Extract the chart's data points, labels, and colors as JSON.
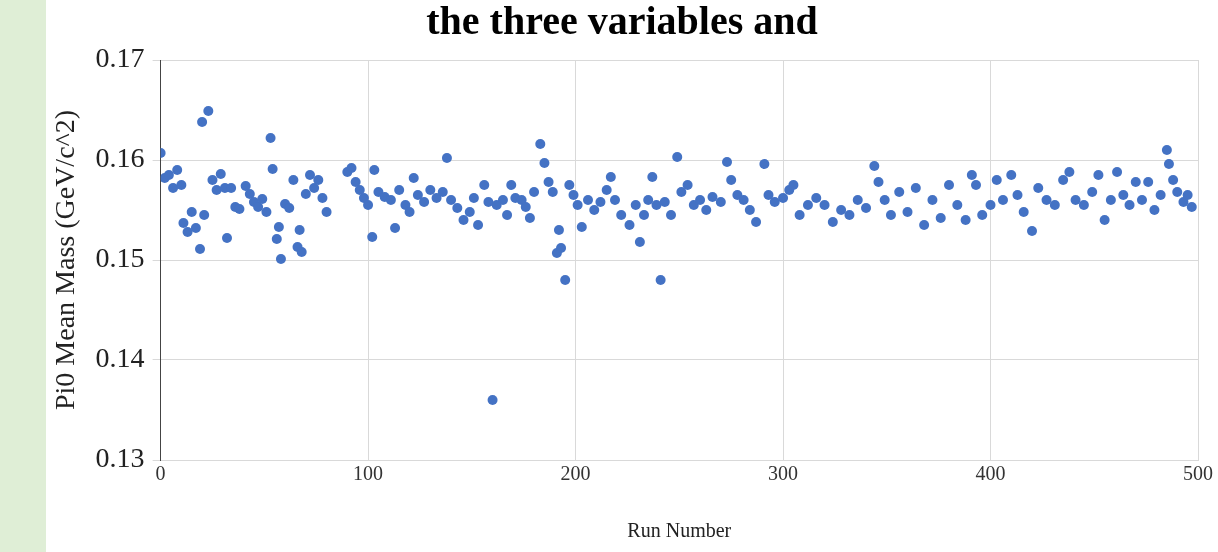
{
  "chart_data": {
    "type": "scatter",
    "title": "the three variables and",
    "xlabel": "Run Number",
    "ylabel": "Pi0 Mean Mass (GeV/c^2)",
    "xlim": [
      0,
      500
    ],
    "xticks": [
      0,
      100,
      200,
      300,
      400,
      500
    ],
    "ylim": [
      0.13,
      0.17
    ],
    "yticks": [
      0.13,
      0.14,
      0.15,
      0.16,
      0.17
    ],
    "grid": true,
    "marker": "circle",
    "legend": false,
    "series": [
      {
        "color": "#4472c4",
        "x": [
          0,
          2,
          4,
          6,
          8,
          10,
          11,
          13,
          15,
          17,
          19,
          20,
          21,
          23,
          25,
          27,
          29,
          31,
          32,
          34,
          36,
          38,
          41,
          43,
          45,
          47,
          49,
          51,
          53,
          54,
          56,
          57,
          58,
          60,
          62,
          64,
          66,
          67,
          68,
          70,
          72,
          74,
          76,
          78,
          80,
          90,
          92,
          94,
          96,
          98,
          100,
          102,
          103,
          105,
          108,
          111,
          113,
          115,
          118,
          120,
          122,
          124,
          127,
          130,
          133,
          136,
          138,
          140,
          143,
          146,
          149,
          151,
          153,
          156,
          158,
          160,
          162,
          165,
          167,
          169,
          171,
          174,
          176,
          178,
          180,
          183,
          185,
          187,
          189,
          191,
          192,
          193,
          195,
          197,
          199,
          201,
          203,
          206,
          209,
          212,
          215,
          217,
          219,
          222,
          226,
          229,
          231,
          233,
          235,
          237,
          239,
          241,
          243,
          246,
          249,
          251,
          254,
          257,
          260,
          263,
          266,
          270,
          273,
          275,
          278,
          281,
          284,
          287,
          291,
          293,
          296,
          300,
          303,
          305,
          308,
          312,
          316,
          320,
          324,
          328,
          332,
          336,
          340,
          344,
          346,
          349,
          352,
          356,
          360,
          364,
          368,
          372,
          376,
          380,
          384,
          388,
          391,
          393,
          396,
          400,
          403,
          406,
          410,
          413,
          416,
          420,
          423,
          427,
          431,
          435,
          438,
          441,
          445,
          449,
          452,
          455,
          458,
          461,
          464,
          467,
          470,
          473,
          476,
          479,
          482,
          485,
          486,
          488,
          490,
          493,
          495,
          497
        ],
        "values": [
          0.1607,
          0.1582,
          0.1585,
          0.1572,
          0.159,
          0.1575,
          0.1537,
          0.1528,
          0.1548,
          0.1532,
          0.1511,
          0.1638,
          0.1545,
          0.1649,
          0.158,
          0.157,
          0.1586,
          0.1572,
          0.1522,
          0.1572,
          0.1553,
          0.1551,
          0.1574,
          0.1566,
          0.1558,
          0.1553,
          0.1561,
          0.1548,
          0.1622,
          0.1591,
          0.1521,
          0.1533,
          0.1501,
          0.1556,
          0.1552,
          0.158,
          0.1513,
          0.153,
          0.1508,
          0.1566,
          0.1585,
          0.1572,
          0.158,
          0.1562,
          0.1548,
          0.1588,
          0.1592,
          0.1578,
          0.157,
          0.1562,
          0.1555,
          0.1523,
          0.159,
          0.1568,
          0.1563,
          0.156,
          0.1532,
          0.157,
          0.1555,
          0.1548,
          0.1582,
          0.1565,
          0.1558,
          0.157,
          0.1562,
          0.1568,
          0.1602,
          0.156,
          0.1552,
          0.154,
          0.1548,
          0.1562,
          0.1535,
          0.1575,
          0.1558,
          0.136,
          0.1555,
          0.156,
          0.1545,
          0.1575,
          0.1562,
          0.156,
          0.1553,
          0.1542,
          0.1568,
          0.1616,
          0.1597,
          0.1578,
          0.1568,
          0.1507,
          0.153,
          0.1512,
          0.148,
          0.1575,
          0.1565,
          0.1555,
          0.1533,
          0.156,
          0.155,
          0.1558,
          0.157,
          0.1583,
          0.156,
          0.1545,
          0.1535,
          0.1555,
          0.1518,
          0.1545,
          0.156,
          0.1583,
          0.1555,
          0.148,
          0.1558,
          0.1545,
          0.1603,
          0.1568,
          0.1575,
          0.1555,
          0.156,
          0.155,
          0.1563,
          0.1558,
          0.1598,
          0.158,
          0.1565,
          0.156,
          0.155,
          0.1538,
          0.1596,
          0.1565,
          0.1558,
          0.1562,
          0.157,
          0.1575,
          0.1545,
          0.1555,
          0.1562,
          0.1555,
          0.1538,
          0.155,
          0.1545,
          0.156,
          0.1552,
          0.1594,
          0.1578,
          0.156,
          0.1545,
          0.1568,
          0.1548,
          0.1572,
          0.1535,
          0.156,
          0.1542,
          0.1575,
          0.1555,
          0.154,
          0.1585,
          0.1575,
          0.1545,
          0.1555,
          0.158,
          0.156,
          0.1585,
          0.1565,
          0.1548,
          0.1529,
          0.1572,
          0.156,
          0.1555,
          0.158,
          0.1588,
          0.156,
          0.1555,
          0.1568,
          0.1585,
          0.154,
          0.156,
          0.1588,
          0.1565,
          0.1555,
          0.1578,
          0.156,
          0.1578,
          0.155,
          0.1565,
          0.161,
          0.1596,
          0.158,
          0.1568,
          0.1558,
          0.1565,
          0.1553
        ]
      }
    ]
  }
}
